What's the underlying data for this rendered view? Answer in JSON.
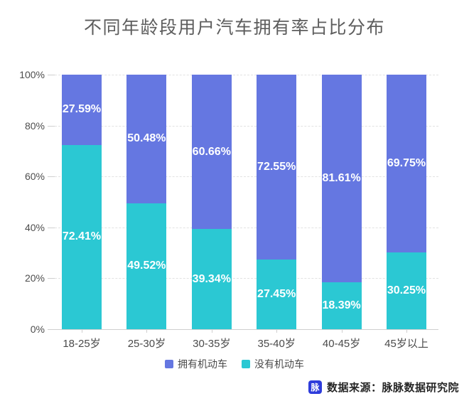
{
  "title": "不同年龄段用户汽车拥有率占比分布",
  "chart_data": {
    "type": "bar",
    "stacked": true,
    "title": "不同年龄段用户汽车拥有率占比分布",
    "categories": [
      "18-25岁",
      "25-30岁",
      "30-35岁",
      "35-40岁",
      "40-45岁",
      "45岁以上"
    ],
    "series": [
      {
        "name": "拥有机动车",
        "color": "#6577e1",
        "values": [
          27.59,
          50.48,
          60.66,
          72.55,
          81.61,
          69.75
        ]
      },
      {
        "name": "没有机动车",
        "color": "#2bc8d3",
        "values": [
          72.41,
          49.52,
          39.34,
          27.45,
          18.39,
          30.25
        ]
      }
    ],
    "value_suffix": "%",
    "xlabel": "",
    "ylabel": "",
    "ylim": [
      0,
      100
    ],
    "y_ticks": [
      "0%",
      "20%",
      "40%",
      "60%",
      "80%",
      "100%"
    ],
    "grid": "horizontal-dashed",
    "legend_position": "bottom"
  },
  "legend": {
    "items": [
      {
        "label": "拥有机动车",
        "color": "#6577e1"
      },
      {
        "label": "没有机动车",
        "color": "#2bc8d3"
      }
    ]
  },
  "footer": {
    "logo_text": "脉",
    "logo_color": "#2e3cdb",
    "source_text": "数据来源：脉脉数据研究院"
  }
}
